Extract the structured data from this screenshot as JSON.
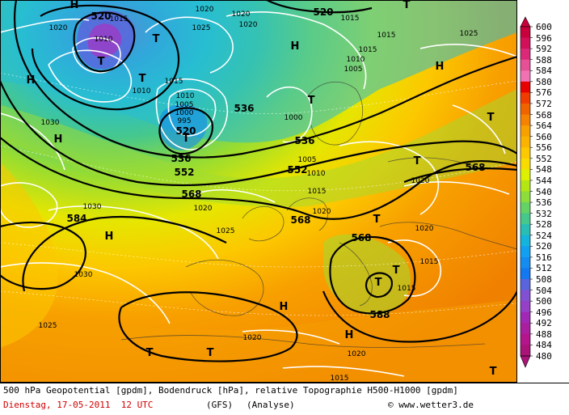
{
  "map": {
    "geopotential_labels": [
      "520",
      "520",
      "520",
      "536",
      "536",
      "552",
      "552",
      "568",
      "568",
      "568",
      "584",
      "588",
      "536",
      "568"
    ],
    "pressure_labels": [
      "1015",
      "1010",
      "1020",
      "1020",
      "1020",
      "1025",
      "1020",
      "1015",
      "1010",
      "1005",
      "1000",
      "1010",
      "1015",
      "1015",
      "1025",
      "1015",
      "1010",
      "1005",
      "1000",
      "995",
      "1030",
      "1030",
      "1030",
      "1025",
      "1020",
      "1025",
      "1020",
      "1020",
      "1020",
      "1015",
      "1015",
      "1015",
      "1020",
      "1020",
      "1010",
      "1005",
      "1015"
    ],
    "high_marker": "H",
    "low_marker": "T"
  },
  "scale": {
    "values": [
      "600",
      "596",
      "592",
      "588",
      "584",
      "580",
      "576",
      "572",
      "568",
      "564",
      "560",
      "556",
      "552",
      "548",
      "544",
      "540",
      "536",
      "532",
      "528",
      "524",
      "520",
      "516",
      "512",
      "508",
      "504",
      "500",
      "496",
      "492",
      "488",
      "484",
      "480"
    ],
    "colors": [
      "#c8003c",
      "#d2105a",
      "#dc2878",
      "#e65096",
      "#f072b4",
      "#e60000",
      "#f03c00",
      "#f06400",
      "#f58200",
      "#f8a000",
      "#fab400",
      "#fcc800",
      "#f8dc00",
      "#dcf000",
      "#b4e614",
      "#8cdc3c",
      "#64d264",
      "#46c88c",
      "#28beb4",
      "#14b4dc",
      "#14a0f0",
      "#148cf0",
      "#1478f0",
      "#5a64dc",
      "#8250d2",
      "#9640c8",
      "#a028b4",
      "#aa1ea0",
      "#b4148c",
      "#aa1478"
    ]
  },
  "footer": {
    "line1": "500 hPa Geopotential [gpdm], Bodendruck [hPa], relative Topographie H500-H1000 [gpdm]",
    "date": "Dienstag, 17-05-2011  12 UTC",
    "model": "(GFS)",
    "type": "(Analyse)",
    "copyright": "© www.wetter3.de"
  }
}
